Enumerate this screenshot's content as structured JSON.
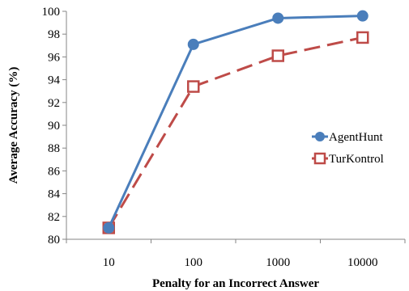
{
  "chart_data": {
    "type": "line",
    "categories": [
      "10",
      "100",
      "1000",
      "10000"
    ],
    "xlabel": "Penalty for an Incorrect Answer",
    "ylabel": "Average Accuracy (%)",
    "ylim": [
      80,
      100
    ],
    "yticks": [
      "80",
      "82",
      "84",
      "86",
      "88",
      "90",
      "92",
      "94",
      "96",
      "98",
      "100"
    ],
    "grid": false,
    "legend_position": "right",
    "series": [
      {
        "name": "AgentHunt",
        "values": [
          81,
          97.1,
          99.4,
          99.6
        ],
        "color": "#4a7ebb",
        "line_style": "solid",
        "marker": "filled-circle"
      },
      {
        "name": "TurKontrol",
        "values": [
          81,
          93.4,
          96.1,
          97.7
        ],
        "color": "#be4b48",
        "line_style": "dashed",
        "marker": "hollow-square"
      }
    ]
  }
}
